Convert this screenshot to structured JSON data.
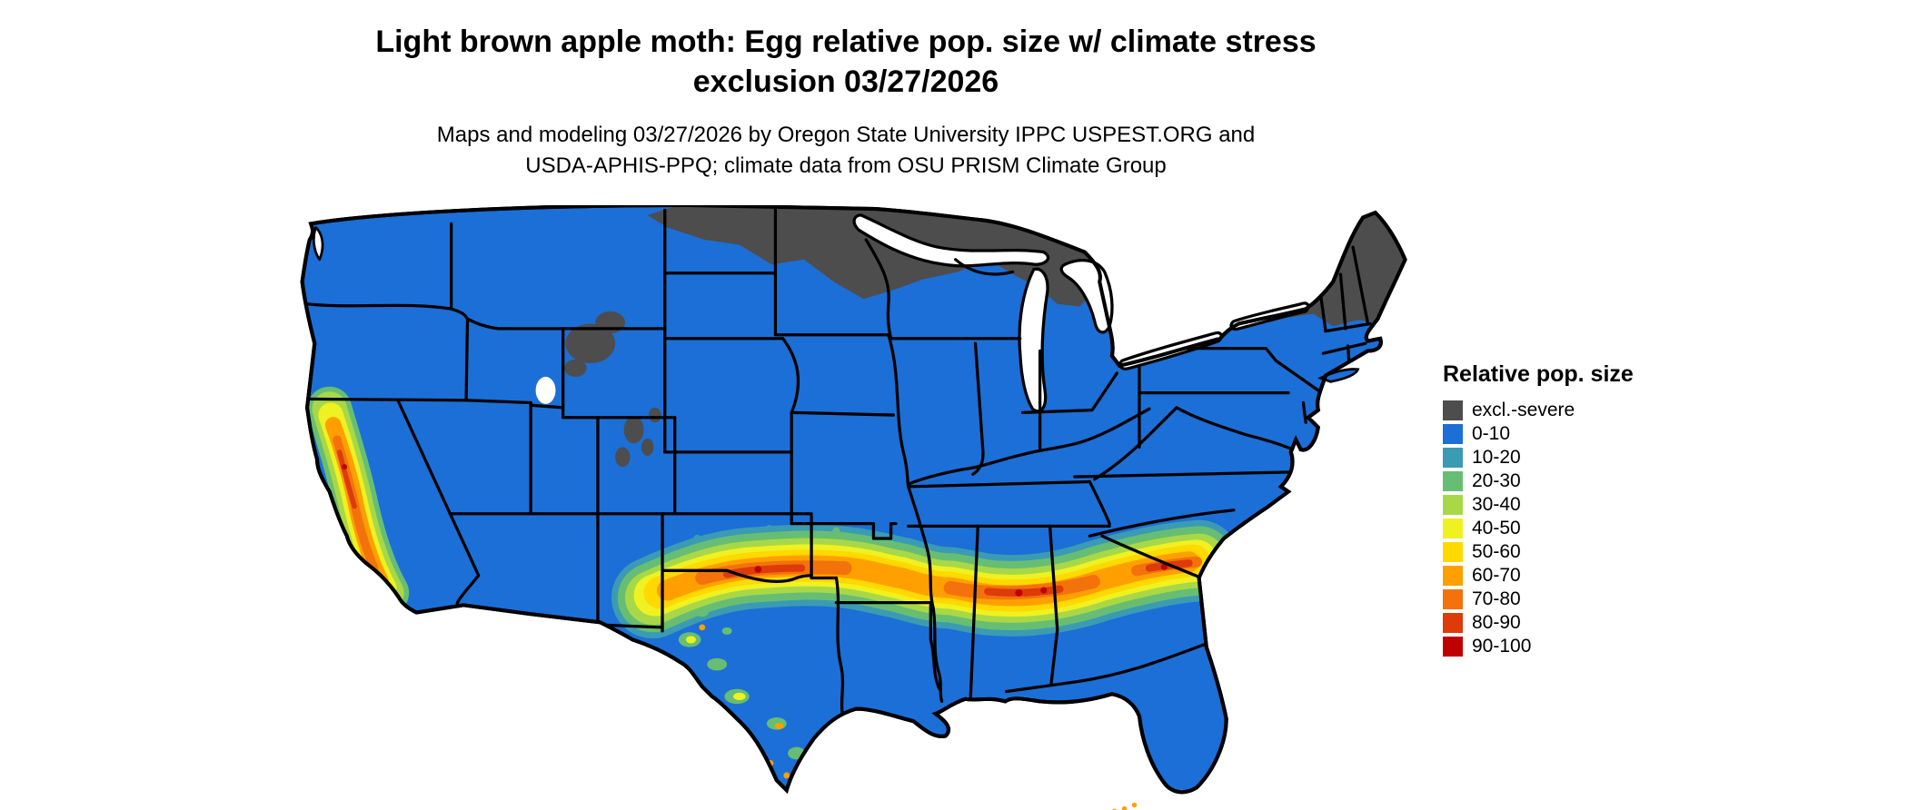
{
  "page": {
    "title_line1": "Light brown apple moth: Egg relative pop. size w/ climate stress",
    "title_line2": "exclusion 03/27/2026",
    "subtitle_line1": "Maps and modeling 03/27/2026 by Oregon State University IPPC USPEST.ORG and",
    "subtitle_line2": "USDA-APHIS-PPQ; climate data from OSU PRISM Climate Group"
  },
  "legend": {
    "title": "Relative pop. size",
    "items": [
      {
        "label": "excl.-severe",
        "color": "#4D4D4D"
      },
      {
        "label": "0-10",
        "color": "#1C6FD6"
      },
      {
        "label": "10-20",
        "color": "#3B9BB3"
      },
      {
        "label": "20-30",
        "color": "#67BE73"
      },
      {
        "label": "30-40",
        "color": "#A8D847"
      },
      {
        "label": "40-50",
        "color": "#EFF121"
      },
      {
        "label": "50-60",
        "color": "#FFD900"
      },
      {
        "label": "60-70",
        "color": "#FFA000"
      },
      {
        "label": "70-80",
        "color": "#F4720C"
      },
      {
        "label": "80-90",
        "color": "#DD3B0A"
      },
      {
        "label": "90-100",
        "color": "#C00000"
      }
    ]
  },
  "map": {
    "region": "Continental United States",
    "background": "#FFFFFF",
    "outline_color": "#000000"
  },
  "chart_data": {
    "type": "heatmap",
    "title": "Light brown apple moth: Egg relative pop. size w/ climate stress exclusion 03/27/2026",
    "legend_title": "Relative pop. size",
    "legend_position": "right",
    "bins": [
      {
        "label": "excl.-severe",
        "color": "#4D4D4D",
        "note": "northern border states, upper Great Lakes, northern New England, high Rockies"
      },
      {
        "label": "0-10",
        "color": "#1C6FD6",
        "note": "most of the continental US"
      },
      {
        "label": "10-20",
        "color": "#3B9BB3"
      },
      {
        "label": "20-30",
        "color": "#67BE73"
      },
      {
        "label": "30-40",
        "color": "#A8D847"
      },
      {
        "label": "40-50",
        "color": "#EFF121"
      },
      {
        "label": "50-60",
        "color": "#FFD900"
      },
      {
        "label": "60-70",
        "color": "#FFA000",
        "note": "band across southern plains, Gulf states, Carolinas; coastal California"
      },
      {
        "label": "70-80",
        "color": "#F4720C"
      },
      {
        "label": "80-90",
        "color": "#DD3B0A"
      },
      {
        "label": "90-100",
        "color": "#C00000",
        "note": "hot spots in Alabama/Georgia, Oklahoma/Texas, South Carolina, central California"
      }
    ]
  }
}
